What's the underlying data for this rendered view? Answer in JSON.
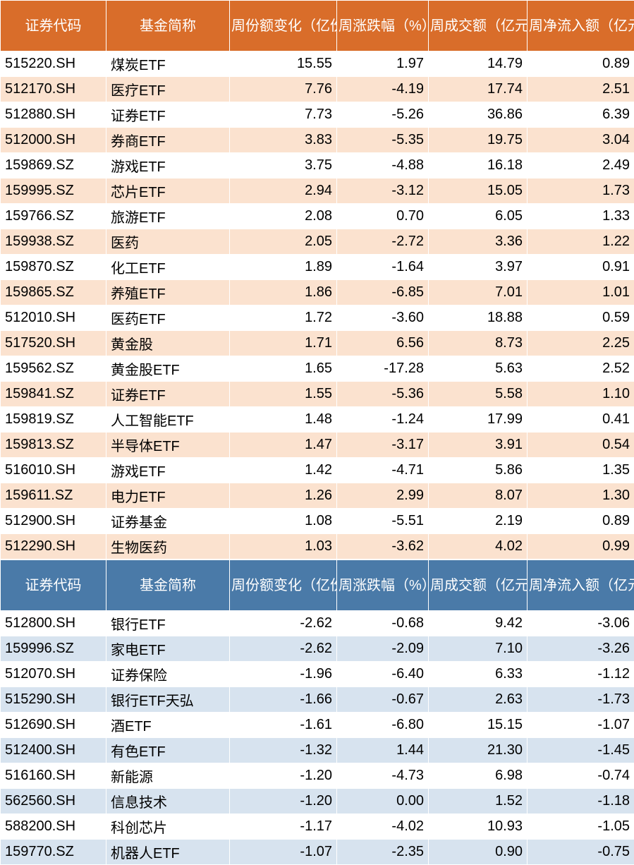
{
  "table1": {
    "header_bg": "#d96d2a",
    "row_alt_bg": "#fbe2cf",
    "columns": [
      "证券代码",
      "基金简称",
      "周份额变化（亿份）",
      "周涨跌幅（%）",
      "周成交额（亿元）",
      "周净流入额（亿元）"
    ],
    "col_align": [
      "left",
      "left",
      "right",
      "right",
      "right",
      "right"
    ],
    "rows": [
      [
        "515220.SH",
        "煤炭ETF",
        "15.55",
        "1.97",
        "14.79",
        "0.89"
      ],
      [
        "512170.SH",
        "医疗ETF",
        "7.76",
        "-4.19",
        "17.74",
        "2.51"
      ],
      [
        "512880.SH",
        "证券ETF",
        "7.73",
        "-5.26",
        "36.86",
        "6.39"
      ],
      [
        "512000.SH",
        "券商ETF",
        "3.83",
        "-5.35",
        "19.75",
        "3.04"
      ],
      [
        "159869.SZ",
        "游戏ETF",
        "3.75",
        "-4.88",
        "16.18",
        "2.49"
      ],
      [
        "159995.SZ",
        "芯片ETF",
        "2.94",
        "-3.12",
        "15.05",
        "1.73"
      ],
      [
        "159766.SZ",
        "旅游ETF",
        "2.08",
        "0.70",
        "6.05",
        "1.33"
      ],
      [
        "159938.SZ",
        "医药",
        "2.05",
        "-2.72",
        "3.36",
        "1.22"
      ],
      [
        "159870.SZ",
        "化工ETF",
        "1.89",
        "-1.64",
        "3.97",
        "0.91"
      ],
      [
        "159865.SZ",
        "养殖ETF",
        "1.86",
        "-6.85",
        "7.01",
        "1.01"
      ],
      [
        "512010.SH",
        "医药ETF",
        "1.72",
        "-3.60",
        "18.88",
        "0.59"
      ],
      [
        "517520.SH",
        "黄金股",
        "1.71",
        "6.56",
        "8.73",
        "2.25"
      ],
      [
        "159562.SZ",
        "黄金股ETF",
        "1.65",
        "-17.28",
        "5.63",
        "2.52"
      ],
      [
        "159841.SZ",
        "证券ETF",
        "1.55",
        "-5.36",
        "5.58",
        "1.10"
      ],
      [
        "159819.SZ",
        "人工智能ETF",
        "1.48",
        "-1.24",
        "17.99",
        "0.41"
      ],
      [
        "159813.SZ",
        "半导体ETF",
        "1.47",
        "-3.17",
        "3.91",
        "0.54"
      ],
      [
        "516010.SH",
        "游戏ETF",
        "1.42",
        "-4.71",
        "5.86",
        "1.35"
      ],
      [
        "159611.SZ",
        "电力ETF",
        "1.26",
        "2.99",
        "8.07",
        "1.30"
      ],
      [
        "512900.SH",
        "证券基金",
        "1.08",
        "-5.51",
        "2.19",
        "0.89"
      ],
      [
        "512290.SH",
        "生物医药",
        "1.03",
        "-3.62",
        "4.02",
        "0.99"
      ]
    ]
  },
  "table2": {
    "header_bg": "#4a7aa8",
    "row_alt_bg": "#d7e3ef",
    "columns": [
      "证券代码",
      "基金简称",
      "周份额变化（亿份）",
      "周涨跌幅（%）",
      "周成交额（亿元）",
      "周净流入额（亿元）"
    ],
    "col_align": [
      "left",
      "left",
      "right",
      "right",
      "right",
      "right"
    ],
    "rows": [
      [
        "512800.SH",
        "银行ETF",
        "-2.62",
        "-0.68",
        "9.42",
        "-3.06"
      ],
      [
        "159996.SZ",
        "家电ETF",
        "-2.62",
        "-2.09",
        "7.10",
        "-3.26"
      ],
      [
        "512070.SH",
        "证券保险",
        "-1.96",
        "-6.40",
        "6.33",
        "-1.12"
      ],
      [
        "515290.SH",
        "银行ETF天弘",
        "-1.66",
        "-0.67",
        "2.63",
        "-1.73"
      ],
      [
        "512690.SH",
        "酒ETF",
        "-1.61",
        "-6.80",
        "15.15",
        "-1.07"
      ],
      [
        "512400.SH",
        "有色ETF",
        "-1.32",
        "1.44",
        "21.30",
        "-1.45"
      ],
      [
        "516160.SH",
        "新能源",
        "-1.20",
        "-4.73",
        "6.98",
        "-0.74"
      ],
      [
        "562560.SH",
        "信息技术",
        "-1.20",
        "0.00",
        "1.52",
        "-1.18"
      ],
      [
        "588200.SH",
        "科创芯片",
        "-1.17",
        "-4.02",
        "10.93",
        "-1.05"
      ],
      [
        "159770.SZ",
        "机器人ETF",
        "-1.07",
        "-2.35",
        "0.90",
        "-0.75"
      ]
    ]
  }
}
